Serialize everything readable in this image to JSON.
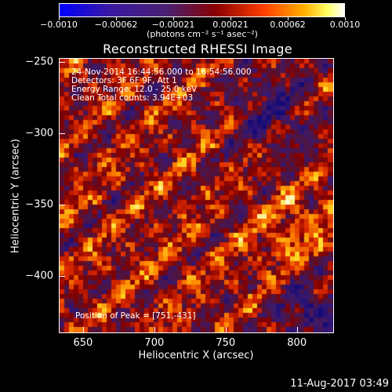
{
  "colorbar": {
    "tick_labels": [
      "−0.0010",
      "−0.00062",
      "−0.00021",
      "0.00021",
      "0.00062",
      "0.0010"
    ],
    "units_label": "(photons cm⁻² s⁻¹ asec⁻²)",
    "range": [
      -0.001,
      0.001
    ]
  },
  "plot": {
    "title": "Reconstructed RHESSI Image",
    "annotations": [
      "24-Nov-2014 16:44:56.000 to 16:54:56.000",
      "Detectors: 3F 6F 9F, Att 1",
      "Energy Range: 12.0 - 25.0 keV",
      "Clean     Total counts: 3.94E+03"
    ],
    "peak_label": "Position of Peak = [751,-431]"
  },
  "chart_data": {
    "type": "heatmap",
    "title": "Reconstructed RHESSI Image",
    "xlabel": "Heliocentric X (arcsec)",
    "ylabel": "Heliocentric Y (arcsec)",
    "xlim": [
      633,
      826
    ],
    "ylim": [
      -440,
      -247
    ],
    "xticks": [
      650,
      700,
      750,
      800
    ],
    "yticks": [
      -250,
      -300,
      -350,
      -400
    ],
    "peak_position": [
      751,
      -431
    ],
    "colormap": "blue-white-red",
    "value_range": [
      -0.001,
      0.001
    ]
  },
  "footer": {
    "timestamp": "11-Aug-2017 03:49"
  }
}
